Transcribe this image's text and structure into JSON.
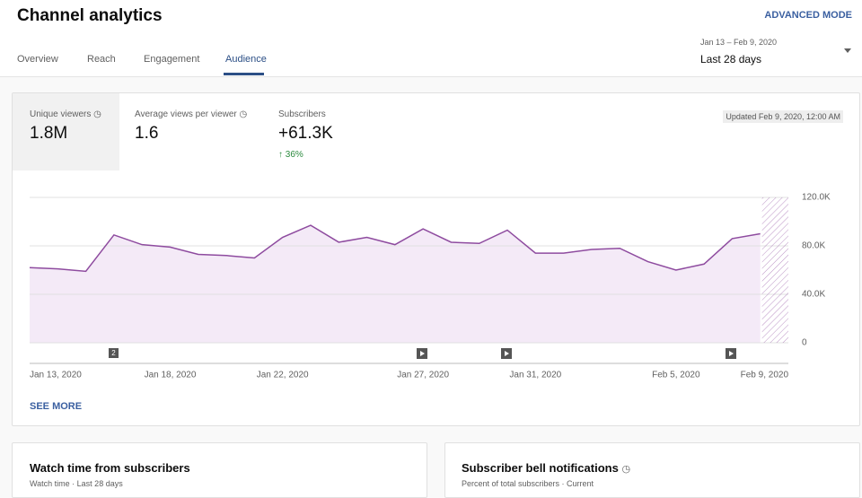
{
  "header": {
    "title": "Channel analytics",
    "advanced": "ADVANCED MODE",
    "tabs": [
      "Overview",
      "Reach",
      "Engagement",
      "Audience"
    ],
    "date_range": "Jan 13 – Feb 9, 2020",
    "period": "Last 28 days"
  },
  "metrics": [
    {
      "label": "Unique viewers",
      "value": "1.8M"
    },
    {
      "label": "Average views per viewer",
      "value": "1.6"
    },
    {
      "label": "Subscribers",
      "value": "+61.3K",
      "change": "36%"
    }
  ],
  "updated": "Updated Feb 9, 2020, 12:00 AM",
  "chart_data": {
    "type": "line",
    "categories": [
      "Jan 13, 2020",
      null,
      null,
      null,
      null,
      "Jan 18, 2020",
      null,
      null,
      null,
      "Jan 22, 2020",
      null,
      null,
      null,
      null,
      "Jan 27, 2020",
      null,
      null,
      null,
      "Jan 31, 2020",
      null,
      null,
      null,
      null,
      "Feb 5, 2020",
      null,
      null,
      null,
      "Feb 9, 2020"
    ],
    "series": [
      {
        "name": "Unique viewers",
        "color": "#8e4b9f",
        "values": [
          62000,
          61000,
          59000,
          89000,
          81000,
          79000,
          73000,
          72000,
          70000,
          87000,
          97000,
          83000,
          87000,
          81000,
          94000,
          83000,
          82000,
          93000,
          74000,
          74000,
          77000,
          78000,
          67000,
          60000,
          65000,
          86000,
          90000,
          null
        ]
      }
    ],
    "ylim": [
      0,
      120000
    ],
    "yticks": [
      0,
      {
        "value": 40000,
        "label": "40.0K"
      },
      {
        "value": 80000,
        "label": "80.0K"
      },
      {
        "value": 120000,
        "label": "120.0K"
      }
    ],
    "grid": true,
    "annotation": "2"
  },
  "see_more": "SEE MORE",
  "cards": [
    {
      "title": "Watch time from subscribers",
      "subtitle": "Watch time · Last 28 days"
    },
    {
      "title": "Subscriber bell notifications",
      "subtitle": "Percent of total subscribers · Current"
    }
  ]
}
